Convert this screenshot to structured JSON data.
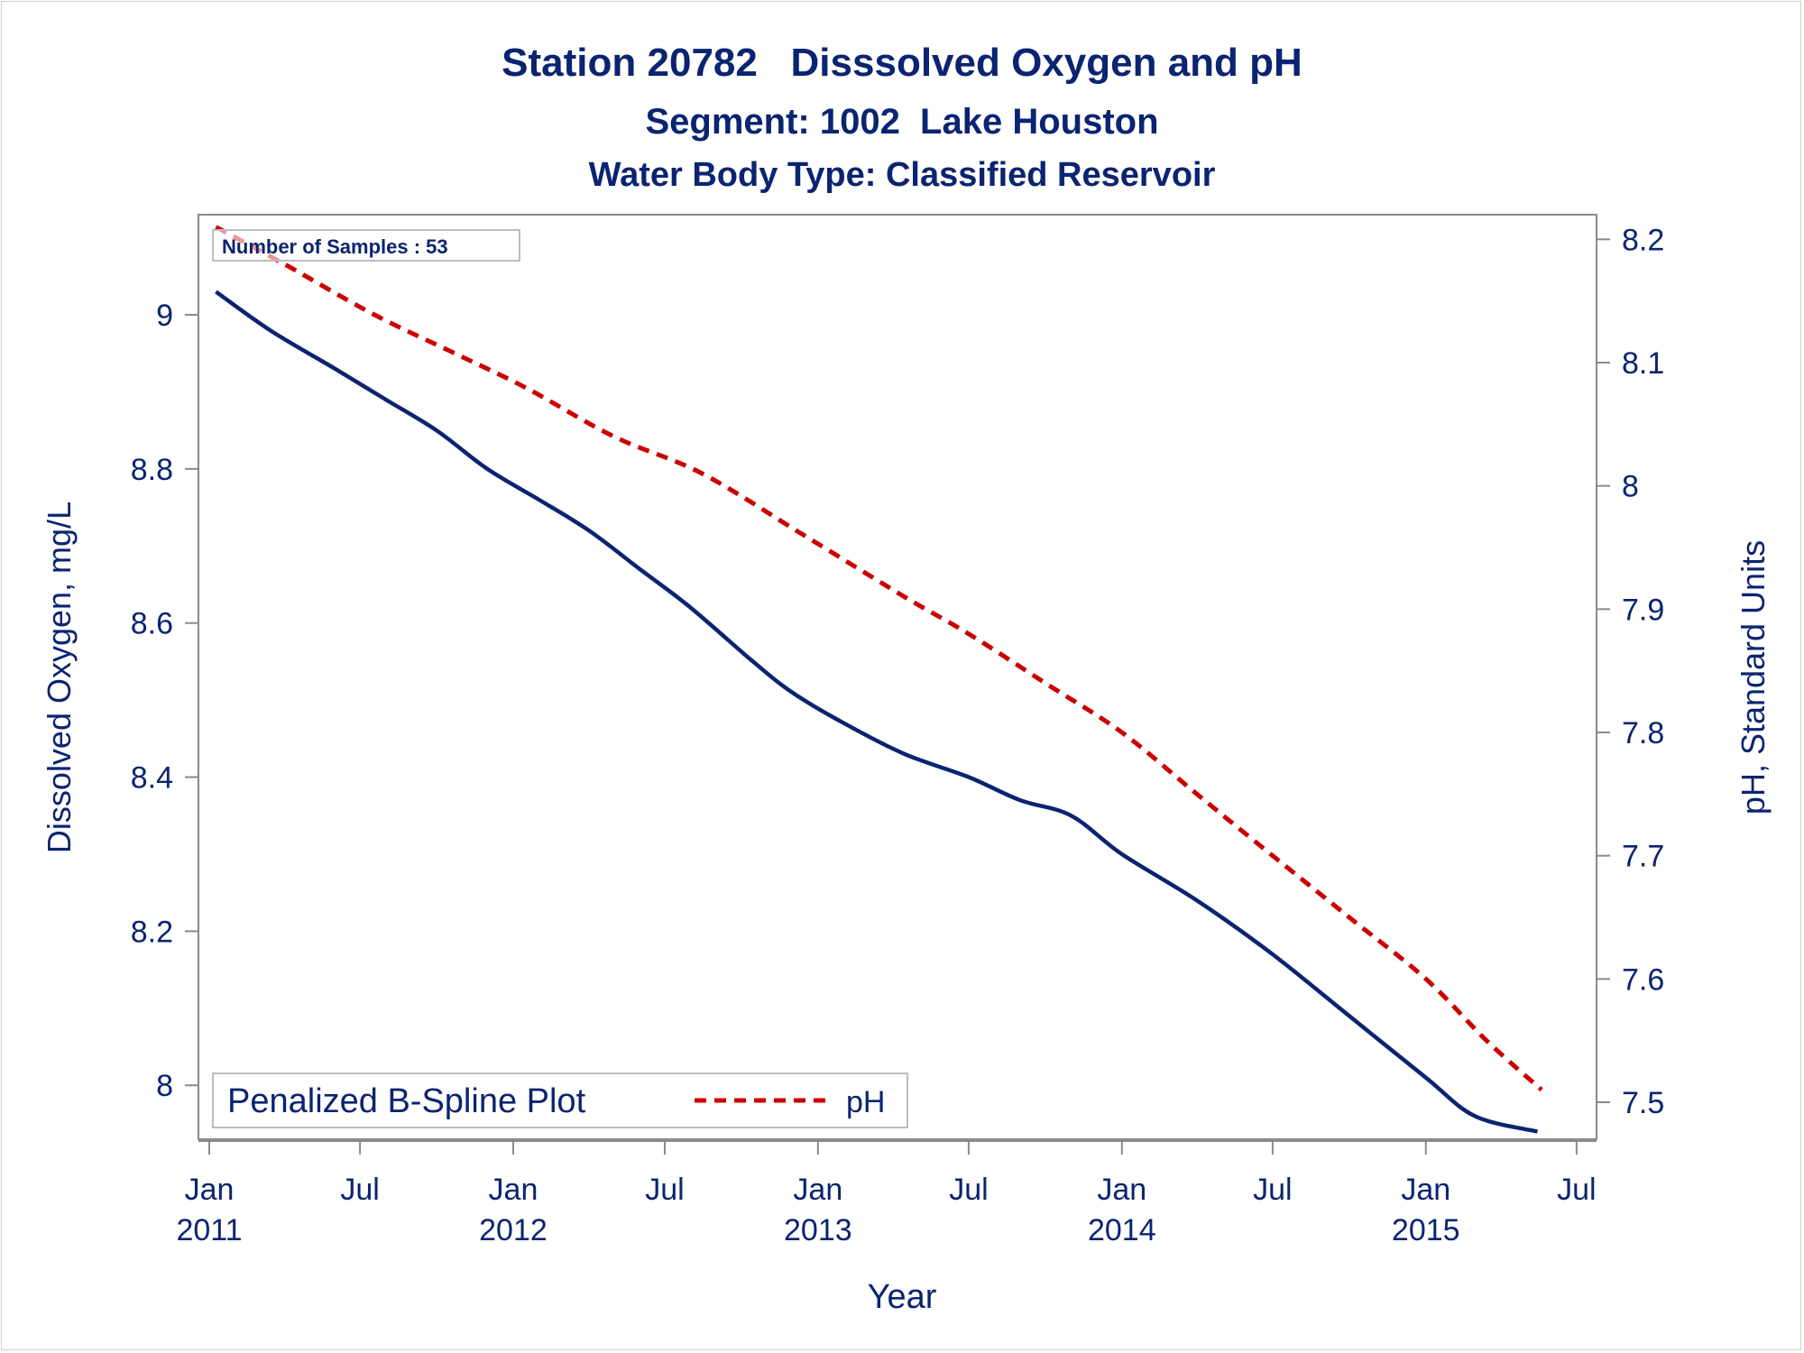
{
  "chart_data": {
    "type": "line",
    "title": "Station 20782   Disssolved Oxygen and pH",
    "subtitle": "Segment: 1002  Lake Houston",
    "subtitle2": "Water Body Type: Classified Reservoir",
    "xlabel": "Year",
    "ylabel_left": "Dissolved Oxygen, mg/L",
    "ylabel_right": "pH, Standard Units",
    "inset_text": "Number of Samples : 53",
    "legend": {
      "title": "Penalized B-Spline Plot",
      "placement": "bottom-left",
      "entries": [
        "pH"
      ]
    },
    "colors": {
      "oxygen": "#0b2471",
      "ph": "#cc0000",
      "text": "#0b2471",
      "axis": "#8a8a8a"
    },
    "x_ticks": [
      {
        "date": "2011-01",
        "month": "Jan",
        "year": "2011"
      },
      {
        "date": "2011-07",
        "month": "Jul",
        "year": ""
      },
      {
        "date": "2012-01",
        "month": "Jan",
        "year": "2012"
      },
      {
        "date": "2012-07",
        "month": "Jul",
        "year": ""
      },
      {
        "date": "2013-01",
        "month": "Jan",
        "year": "2013"
      },
      {
        "date": "2013-07",
        "month": "Jul",
        "year": ""
      },
      {
        "date": "2014-01",
        "month": "Jan",
        "year": "2014"
      },
      {
        "date": "2014-07",
        "month": "Jul",
        "year": ""
      },
      {
        "date": "2015-01",
        "month": "Jan",
        "year": "2015"
      },
      {
        "date": "2015-07",
        "month": "Jul",
        "year": ""
      }
    ],
    "xlim": [
      "2010-12-19",
      "2015-07-25"
    ],
    "y_left_ticks": [
      "8",
      "8.2",
      "8.4",
      "8.6",
      "8.8",
      "9"
    ],
    "y_left_lim": [
      7.93,
      9.13
    ],
    "y_right_ticks": [
      "7.5",
      "7.6",
      "7.7",
      "7.8",
      "7.9",
      "8",
      "8.1",
      "8.2"
    ],
    "y_right_lim": [
      7.47,
      8.22
    ],
    "series": [
      {
        "key": "oxygen",
        "axis": "left",
        "style": "solid",
        "points": [
          [
            "2011-01-09",
            9.03
          ],
          [
            "2011-03-15",
            8.98
          ],
          [
            "2011-06-01",
            8.93
          ],
          [
            "2011-08-01",
            8.89
          ],
          [
            "2011-10-01",
            8.85
          ],
          [
            "2011-12-01",
            8.8
          ],
          [
            "2012-02-01",
            8.76
          ],
          [
            "2012-04-01",
            8.72
          ],
          [
            "2012-06-01",
            8.67
          ],
          [
            "2012-08-01",
            8.62
          ],
          [
            "2012-10-15",
            8.55
          ],
          [
            "2012-12-01",
            8.51
          ],
          [
            "2013-02-01",
            8.47
          ],
          [
            "2013-04-15",
            8.43
          ],
          [
            "2013-07-01",
            8.4
          ],
          [
            "2013-09-01",
            8.37
          ],
          [
            "2013-11-01",
            8.35
          ],
          [
            "2014-01-01",
            8.3
          ],
          [
            "2014-04-01",
            8.24
          ],
          [
            "2014-07-01",
            8.17
          ],
          [
            "2014-10-01",
            8.09
          ],
          [
            "2015-01-01",
            8.01
          ],
          [
            "2015-03-01",
            7.96
          ],
          [
            "2015-05-15",
            7.94
          ]
        ]
      },
      {
        "key": "ph",
        "name": "pH",
        "axis": "right",
        "style": "dashed",
        "points": [
          [
            "2011-01-09",
            8.21
          ],
          [
            "2011-04-01",
            8.18
          ],
          [
            "2011-07-15",
            8.14
          ],
          [
            "2011-10-15",
            8.11
          ],
          [
            "2012-01-15",
            8.08
          ],
          [
            "2012-05-01",
            8.04
          ],
          [
            "2012-08-15",
            8.01
          ],
          [
            "2012-12-15",
            7.96
          ],
          [
            "2013-04-15",
            7.91
          ],
          [
            "2013-07-01",
            7.88
          ],
          [
            "2013-10-01",
            7.84
          ],
          [
            "2014-01-01",
            7.8
          ],
          [
            "2014-04-01",
            7.75
          ],
          [
            "2014-07-01",
            7.7
          ],
          [
            "2014-10-01",
            7.65
          ],
          [
            "2015-01-01",
            7.6
          ],
          [
            "2015-03-15",
            7.55
          ],
          [
            "2015-05-20",
            7.51
          ]
        ]
      }
    ]
  }
}
